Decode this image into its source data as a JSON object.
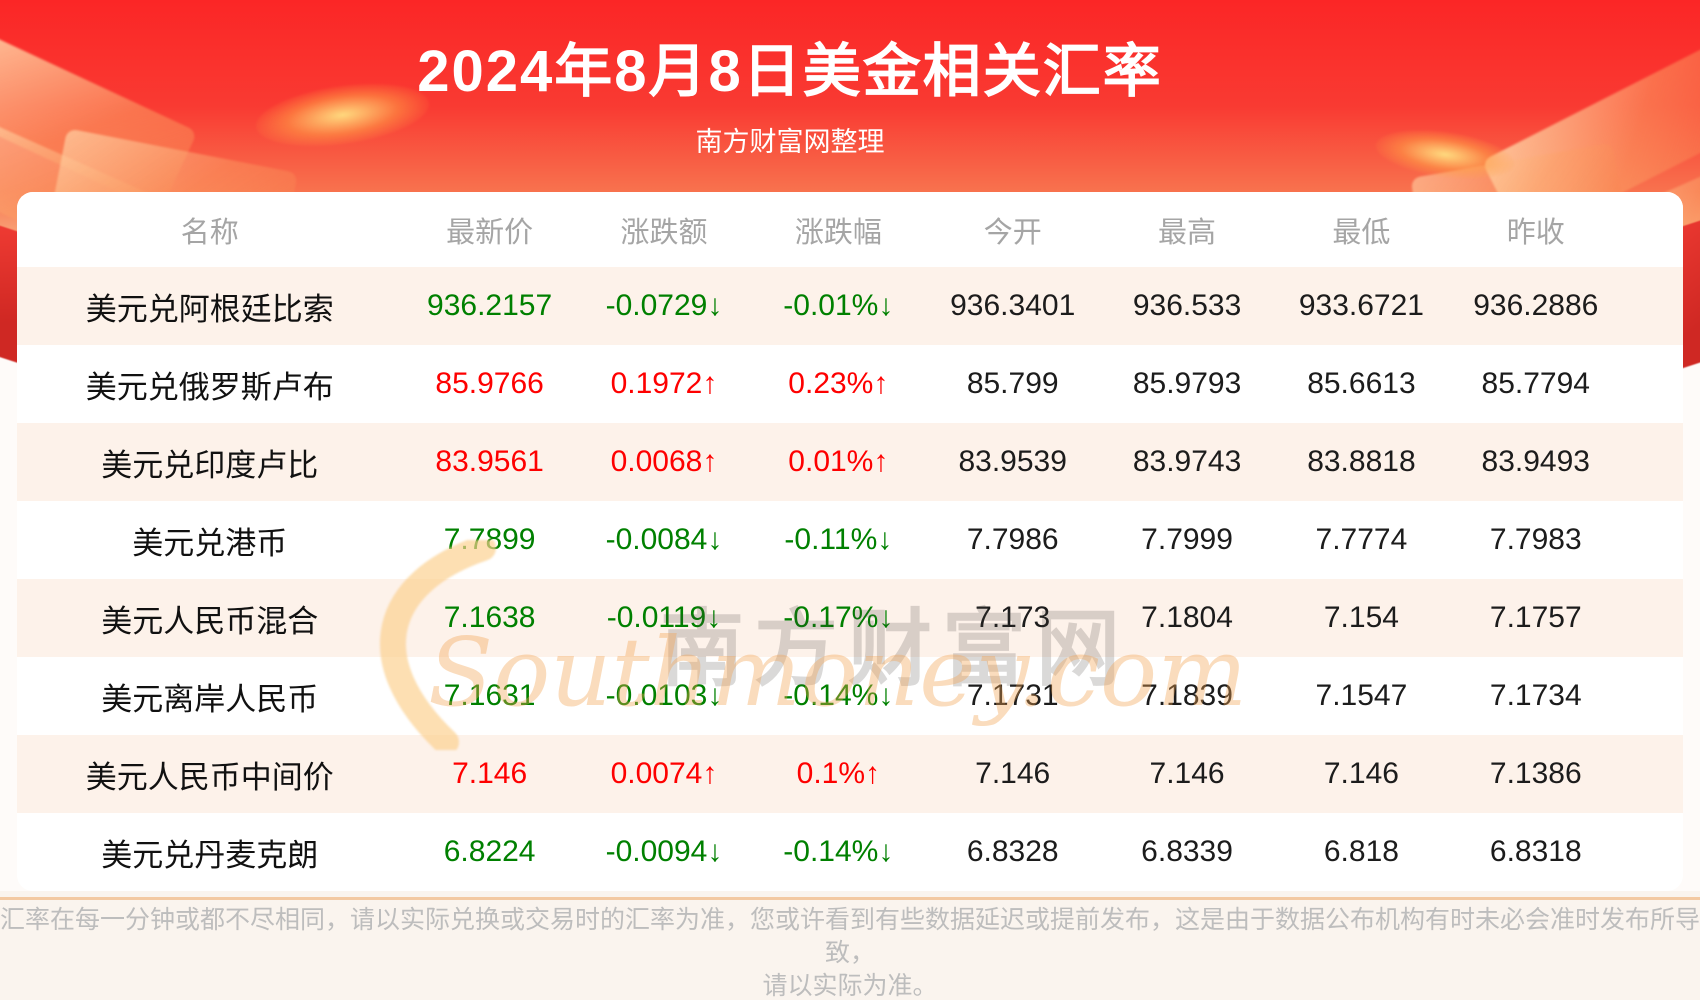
{
  "header": {
    "title": "2024年8月8日美金相关汇率",
    "subtitle": "南方财富网整理"
  },
  "chart_data": {
    "type": "table",
    "title": "2024年8月8日美金相关汇率",
    "columns": [
      "名称",
      "最新价",
      "涨跌额",
      "涨跌幅",
      "今开",
      "最高",
      "最低",
      "昨收"
    ],
    "rows": [
      {
        "name": "美元兑阿根廷比索",
        "latest": "936.2157",
        "change": "-0.0729↓",
        "change_pct": "-0.01%↓",
        "open": "936.3401",
        "high": "936.533",
        "low": "933.6721",
        "prev_close": "936.2886",
        "direction": "down"
      },
      {
        "name": "美元兑俄罗斯卢布",
        "latest": "85.9766",
        "change": "0.1972↑",
        "change_pct": "0.23%↑",
        "open": "85.799",
        "high": "85.9793",
        "low": "85.6613",
        "prev_close": "85.7794",
        "direction": "up"
      },
      {
        "name": "美元兑印度卢比",
        "latest": "83.9561",
        "change": "0.0068↑",
        "change_pct": "0.01%↑",
        "open": "83.9539",
        "high": "83.9743",
        "low": "83.8818",
        "prev_close": "83.9493",
        "direction": "up"
      },
      {
        "name": "美元兑港币",
        "latest": "7.7899",
        "change": "-0.0084↓",
        "change_pct": "-0.11%↓",
        "open": "7.7986",
        "high": "7.7999",
        "low": "7.7774",
        "prev_close": "7.7983",
        "direction": "down"
      },
      {
        "name": "美元人民币混合",
        "latest": "7.1638",
        "change": "-0.0119↓",
        "change_pct": "-0.17%↓",
        "open": "7.173",
        "high": "7.1804",
        "low": "7.154",
        "prev_close": "7.1757",
        "direction": "down"
      },
      {
        "name": "美元离岸人民币",
        "latest": "7.1631",
        "change": "-0.0103↓",
        "change_pct": "-0.14%↓",
        "open": "7.1731",
        "high": "7.1839",
        "low": "7.1547",
        "prev_close": "7.1734",
        "direction": "down"
      },
      {
        "name": "美元人民币中间价",
        "latest": "7.146",
        "change": "0.0074↑",
        "change_pct": "0.1%↑",
        "open": "7.146",
        "high": "7.146",
        "low": "7.146",
        "prev_close": "7.1386",
        "direction": "up"
      },
      {
        "name": "美元兑丹麦克朗",
        "latest": "6.8224",
        "change": "-0.0094↓",
        "change_pct": "-0.14%↓",
        "open": "6.8328",
        "high": "6.8339",
        "low": "6.818",
        "prev_close": "6.8318",
        "direction": "down"
      }
    ]
  },
  "watermark": {
    "cn": "南方财富网",
    "en": "Southmoney.com"
  },
  "footer": {
    "line1": "汇率在每一分钟或都不尽相同，请以实际兑换或交易时的汇率为准，您或许看到有些数据延迟或提前发布，这是由于数据公布机构有时未必会准时发布所导致，",
    "line2": "请以实际为准。"
  },
  "colors": {
    "header_red_top": "#fb2626",
    "header_red_bottom": "#f9b888",
    "up": "#fe0000",
    "down": "#008000",
    "row_alt_bg": "#fdf2ea",
    "divider": "#f3c9a2",
    "header_text": "#a5a5a5",
    "footer_text": "#bdbdbd"
  }
}
